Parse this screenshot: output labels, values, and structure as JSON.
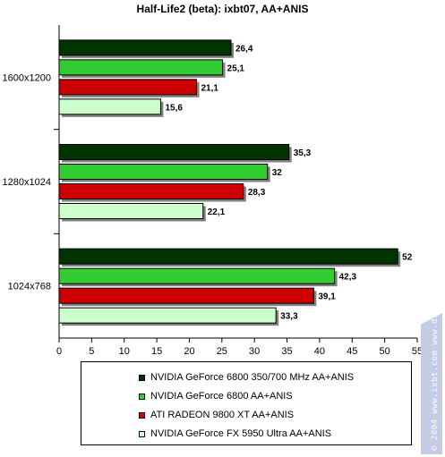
{
  "chart_data": {
    "type": "bar",
    "orientation": "horizontal",
    "title": "Half-Life2 (beta): ixbt07, AA+ANIS",
    "categories": [
      "1600x1200",
      "1280x1024",
      "1024x768"
    ],
    "series": [
      {
        "name": "NVIDIA GeForce 6800 350/700 MHz AA+ANIS",
        "color": "#003300",
        "values": [
          26.4,
          35.3,
          52
        ]
      },
      {
        "name": "NVIDIA GeForce 6800 AA+ANIS",
        "color": "#33cc33",
        "values": [
          25.1,
          32,
          42.3
        ]
      },
      {
        "name": "ATI RADEON 9800 XT AA+ANIS",
        "color": "#cc0000",
        "values": [
          21.1,
          28.3,
          39.1
        ]
      },
      {
        "name": "NVIDIA GeForce FX 5950 Ultra AA+ANIS",
        "color": "#ccffcc",
        "values": [
          15.6,
          22.1,
          33.3
        ]
      }
    ],
    "value_labels": [
      [
        "26,4",
        "35,3",
        "52"
      ],
      [
        "25,1",
        "32",
        "42,3"
      ],
      [
        "21,1",
        "28,3",
        "39,1"
      ],
      [
        "15,6",
        "22,1",
        "33,3"
      ]
    ],
    "xlim": [
      0,
      55
    ],
    "xticks": [
      "0",
      "5",
      "10",
      "15",
      "20",
      "25",
      "30",
      "35",
      "40",
      "45",
      "50",
      "55"
    ],
    "xlabel": "",
    "ylabel": "",
    "grid": false,
    "legend_position": "bottom"
  },
  "watermark": "© 2004 www.ixbt.com  www.digit-life.com"
}
